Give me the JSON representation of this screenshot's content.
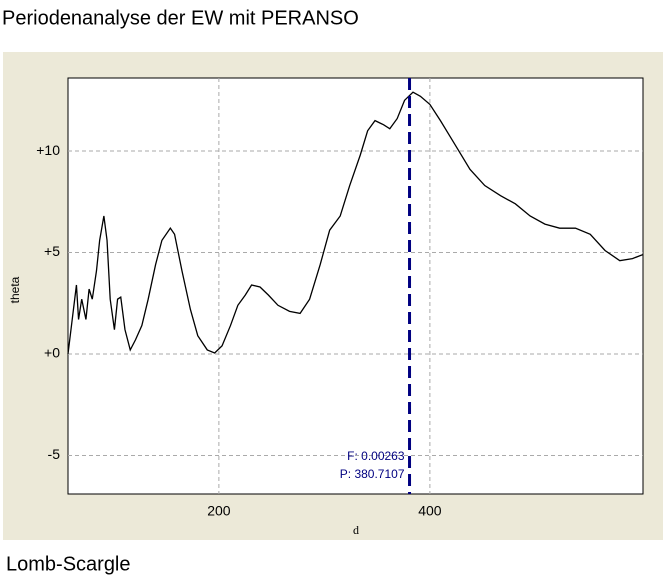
{
  "chart_data": {
    "type": "line",
    "title": "Periodenanalyse der EW mit PERANSO",
    "caption": "Lomb-Scargle",
    "xlabel": "d",
    "ylabel": "theta",
    "x": [
      57,
      61,
      65,
      67,
      70,
      74,
      77,
      80,
      84,
      87,
      91,
      94,
      97,
      101,
      104,
      107,
      111,
      116,
      121,
      127,
      133,
      140,
      146,
      154,
      158,
      165,
      173,
      180,
      189,
      196,
      203,
      211,
      218,
      225,
      231,
      239,
      247,
      256,
      267,
      277,
      286,
      296,
      305,
      315,
      324,
      334,
      341,
      348,
      356,
      362,
      369,
      376,
      384,
      391,
      400,
      410,
      424,
      438,
      452,
      467,
      481,
      495,
      509,
      523,
      538,
      552,
      566,
      580,
      592,
      602
    ],
    "values": [
      0,
      1.7,
      3.4,
      1.7,
      2.7,
      1.7,
      3.2,
      2.7,
      4.1,
      5.6,
      6.8,
      5.6,
      2.7,
      1.2,
      2.7,
      2.8,
      1.2,
      0.2,
      0.7,
      1.4,
      2.7,
      4.4,
      5.6,
      6.2,
      5.9,
      4.1,
      2.2,
      0.9,
      0.2,
      0.05,
      0.4,
      1.4,
      2.4,
      2.9,
      3.4,
      3.3,
      2.9,
      2.4,
      2.1,
      2.0,
      2.7,
      4.4,
      6.1,
      6.8,
      8.3,
      9.8,
      11.0,
      11.5,
      11.3,
      11.1,
      11.6,
      12.5,
      12.9,
      12.7,
      12.3,
      11.5,
      10.3,
      9.1,
      8.3,
      7.8,
      7.4,
      6.8,
      6.4,
      6.2,
      6.2,
      5.9,
      5.1,
      4.6,
      4.7,
      4.9
    ],
    "color": "#000000",
    "xlim": [
      57,
      602
    ],
    "ylim": [
      -6.9,
      13.6
    ],
    "xticks": [
      200,
      400
    ],
    "yticks": [
      {
        "value": -5,
        "label": "-5"
      },
      {
        "value": 0,
        "label": "+0"
      },
      {
        "value": 5,
        "label": "+5"
      },
      {
        "value": 10,
        "label": "+10"
      }
    ],
    "grid": true,
    "marker": {
      "x": 380.7107,
      "color": "#000080"
    },
    "annotations": [
      "F: 0.00263",
      "P: 380.7107"
    ]
  }
}
